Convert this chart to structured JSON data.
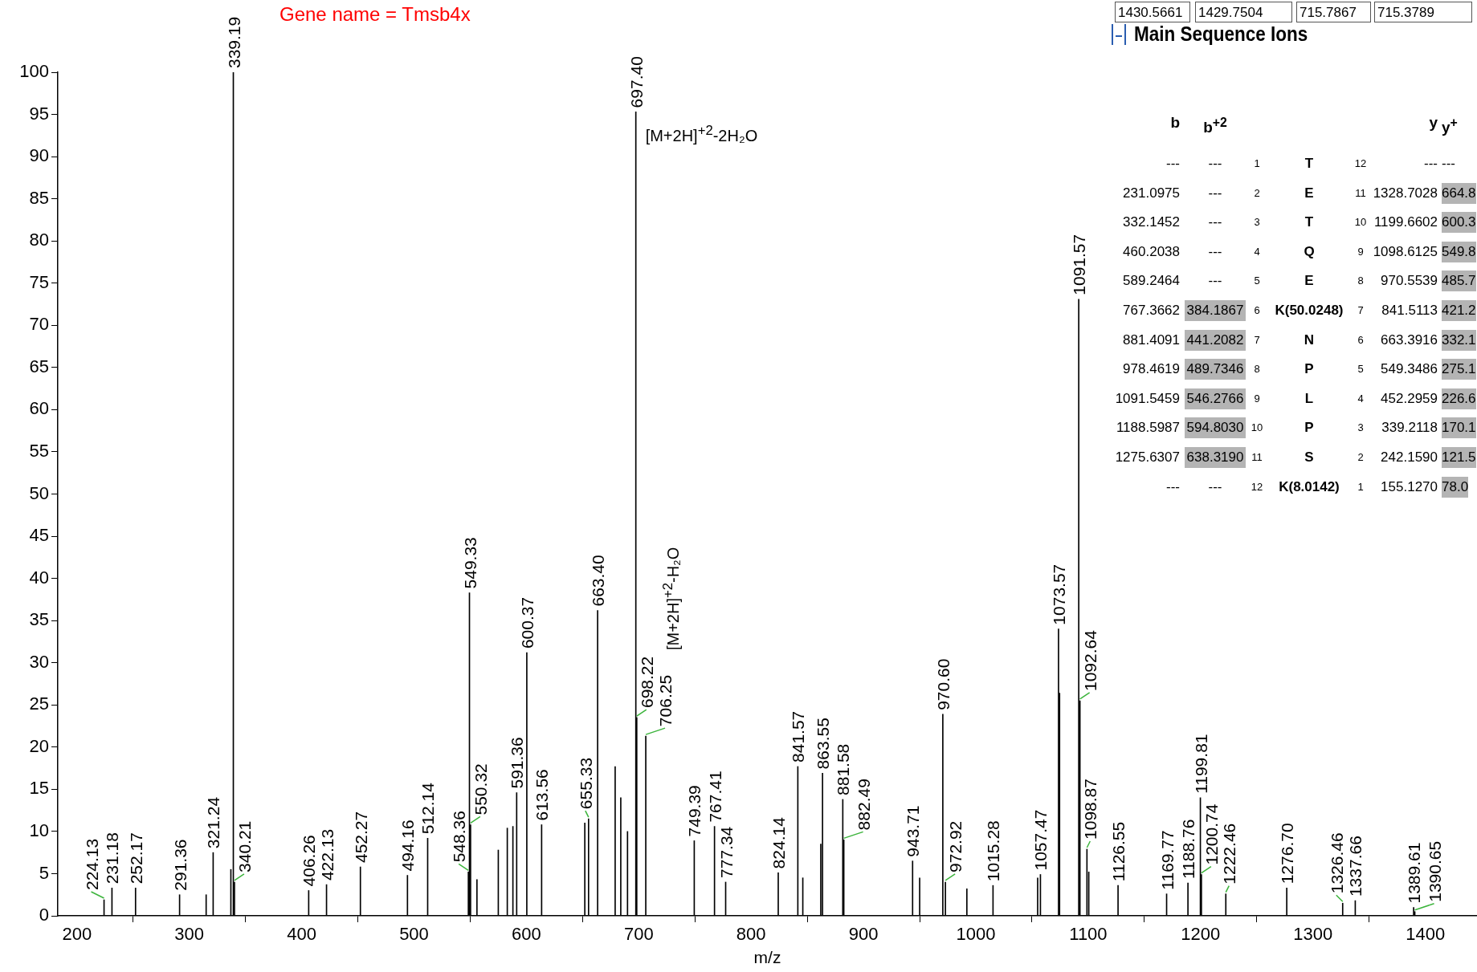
{
  "chart_data": {
    "type": "bar",
    "xlabel": "m/z",
    "color": "#000000",
    "xlim": [
      183,
      1446
    ],
    "ylim": [
      0,
      100
    ],
    "xticks": [
      200,
      300,
      400,
      500,
      600,
      700,
      800,
      900,
      1000,
      1100,
      1200,
      1300,
      1400
    ],
    "yticks": [
      0,
      5,
      10,
      15,
      20,
      25,
      30,
      35,
      40,
      45,
      50,
      55,
      60,
      65,
      70,
      75,
      80,
      85,
      90,
      95,
      100
    ],
    "x": [
      224.13,
      231.18,
      252.17,
      291.36,
      315,
      321.24,
      337,
      339.19,
      340.21,
      406.26,
      422.13,
      452.27,
      494.16,
      512.14,
      548.36,
      549.33,
      550.32,
      556,
      575,
      583,
      588,
      591.36,
      600.37,
      613.56,
      652,
      655.33,
      663.4,
      679,
      684,
      690,
      697.4,
      698.22,
      706.25,
      749.39,
      767.41,
      777.34,
      824.14,
      841.57,
      846,
      862,
      863.55,
      881.58,
      882.49,
      943.71,
      950,
      970.6,
      972.92,
      992,
      1015.28,
      1055,
      1057.47,
      1073.57,
      1074.5,
      1091.57,
      1092.64,
      1098.87,
      1100.5,
      1126.55,
      1169.77,
      1188.76,
      1199.81,
      1200.74,
      1222.46,
      1276.7,
      1326.46,
      1337.66,
      1389.61,
      1390.65
    ],
    "values": [
      1.9,
      3.3,
      3.3,
      2.5,
      2.5,
      7.5,
      5.5,
      100,
      4.0,
      3.0,
      3.7,
      5.8,
      4.8,
      9.2,
      5.2,
      38.3,
      10.8,
      4.3,
      7.8,
      10.4,
      10.6,
      14.6,
      31.2,
      10.8,
      11,
      11.5,
      36.2,
      17.7,
      14,
      10,
      95.3,
      23.5,
      21.3,
      8.9,
      10.6,
      4.0,
      5.1,
      17.7,
      4.5,
      8.5,
      16.9,
      13.8,
      9.0,
      6.5,
      4.5,
      23.9,
      4.0,
      3.2,
      3.6,
      4.5,
      4.9,
      34.0,
      26.4,
      73.1,
      25.5,
      7.9,
      5.2,
      3.6,
      2.6,
      3.9,
      14.0,
      4.9,
      2.6,
      3.3,
      1.5,
      1.8,
      1.0,
      0.5
    ],
    "annotations": [
      "Gene name =  Tmsb4x",
      {
        "text": "[M+2H]$^{+2}$-2H₂O",
        "x": 697.4,
        "y": 95.3
      },
      "[M+2H]$^{+2}$-H₂O",
      "1430.5661 1429.7504 715.7867 715.3789",
      "Main Sequence Ions",
      "b b$^{+2}$ y y$^{+}$",
      "--- --- 1 T 12 --- ---",
      "231.0975 --- 2 E 11 1328.7028 664.8",
      "332.1452 --- 3 T 10 1199.6602 600.3",
      "460.2038 --- 4 Q 9 1098.6125 549.8",
      "589.2464 --- 5 E 8 970.5539 485.7",
      "767.3662 384.1867 6 K(50.0248) 7 841.5113 421.2",
      "881.4091 441.2082 7 N 6 663.3916 332.1",
      "978.4619 489.7346 8 P 5 549.3486 275.1",
      "1091.5459 546.2766 9 L 4 452.2959 226.6",
      "1188.5987 594.8030 10 P 3 339.2118 170.1",
      "1275.6307 638.3190 11 S 2 242.1590 121.5",
      "--- --- 12 K(8.0142) 1 155.1270 78.0",
      {
        "text": "224.13",
        "x": 224.13,
        "y": 1.9
      },
      {
        "text": "231.18",
        "x": 231.18,
        "y": 3.3
      },
      {
        "text": "252.17",
        "x": 252.17,
        "y": 3.3
      },
      {
        "text": "291.36",
        "x": 291.36,
        "y": 2.5
      },
      {
        "text": "321.24",
        "x": 321.24,
        "y": 7.5
      },
      {
        "text": "339.19",
        "x": 339.19,
        "y": 100
      },
      {
        "text": "340.21",
        "x": 340.21,
        "y": 4.0
      },
      {
        "text": "406.26",
        "x": 406.26,
        "y": 3.0
      },
      {
        "text": "422.13",
        "x": 422.13,
        "y": 3.7
      },
      {
        "text": "452.27",
        "x": 452.27,
        "y": 5.8
      },
      {
        "text": "494.16",
        "x": 494.16,
        "y": 4.8
      },
      {
        "text": "512.14",
        "x": 512.14,
        "y": 9.2
      },
      {
        "text": "548.36",
        "x": 548.36,
        "y": 5.2
      },
      {
        "text": "549.33",
        "x": 549.33,
        "y": 38.3
      },
      {
        "text": "550.32",
        "x": 550.32,
        "y": 10.8
      },
      {
        "text": "591.36",
        "x": 591.36,
        "y": 14.6
      },
      {
        "text": "600.37",
        "x": 600.37,
        "y": 31.2
      },
      {
        "text": "613.56",
        "x": 613.56,
        "y": 10.8
      },
      {
        "text": "655.33",
        "x": 655.33,
        "y": 11.5
      },
      {
        "text": "663.40",
        "x": 663.4,
        "y": 36.2
      },
      {
        "text": "697.40",
        "x": 697.4,
        "y": 95.3
      },
      {
        "text": "698.22",
        "x": 698.22,
        "y": 23.5
      },
      {
        "text": "706.25",
        "x": 706.25,
        "y": 21.3
      },
      {
        "text": "749.39",
        "x": 749.39,
        "y": 8.9
      },
      {
        "text": "767.41",
        "x": 767.41,
        "y": 10.6
      },
      {
        "text": "777.34",
        "x": 777.34,
        "y": 4.0
      },
      {
        "text": "824.14",
        "x": 824.14,
        "y": 5.1
      },
      {
        "text": "841.57",
        "x": 841.57,
        "y": 17.7
      },
      {
        "text": "863.55",
        "x": 863.55,
        "y": 16.9
      },
      {
        "text": "881.58",
        "x": 881.58,
        "y": 13.8
      },
      {
        "text": "882.49",
        "x": 882.49,
        "y": 9.0
      },
      {
        "text": "943.71",
        "x": 943.71,
        "y": 6.5
      },
      {
        "text": "970.60",
        "x": 970.6,
        "y": 23.9
      },
      {
        "text": "972.92",
        "x": 972.92,
        "y": 4.0
      },
      {
        "text": "1015.28",
        "x": 1015.28,
        "y": 3.6
      },
      {
        "text": "1057.47",
        "x": 1057.47,
        "y": 4.9
      },
      {
        "text": "1073.57",
        "x": 1073.57,
        "y": 34.0
      },
      {
        "text": "1091.57",
        "x": 1091.57,
        "y": 73.1
      },
      {
        "text": "1092.64",
        "x": 1092.64,
        "y": 25.5
      },
      {
        "text": "1098.87",
        "x": 1098.87,
        "y": 7.9
      },
      {
        "text": "1126.55",
        "x": 1126.55,
        "y": 3.6
      },
      {
        "text": "1169.77",
        "x": 1169.77,
        "y": 2.6
      },
      {
        "text": "1188.76",
        "x": 1188.76,
        "y": 3.9
      },
      {
        "text": "1199.81",
        "x": 1199.81,
        "y": 14.0
      },
      {
        "text": "1200.74",
        "x": 1200.74,
        "y": 4.9
      },
      {
        "text": "1222.46",
        "x": 1222.46,
        "y": 2.6
      },
      {
        "text": "1276.70",
        "x": 1276.7,
        "y": 3.3
      },
      {
        "text": "1326.46",
        "x": 1326.46,
        "y": 1.5
      },
      {
        "text": "1337.66",
        "x": 1337.66,
        "y": 1.8
      },
      {
        "text": "1389.61",
        "x": 1389.61,
        "y": 1.0
      },
      {
        "text": "1390.65",
        "x": 1390.65,
        "y": 0.5
      }
    ]
  }
}
